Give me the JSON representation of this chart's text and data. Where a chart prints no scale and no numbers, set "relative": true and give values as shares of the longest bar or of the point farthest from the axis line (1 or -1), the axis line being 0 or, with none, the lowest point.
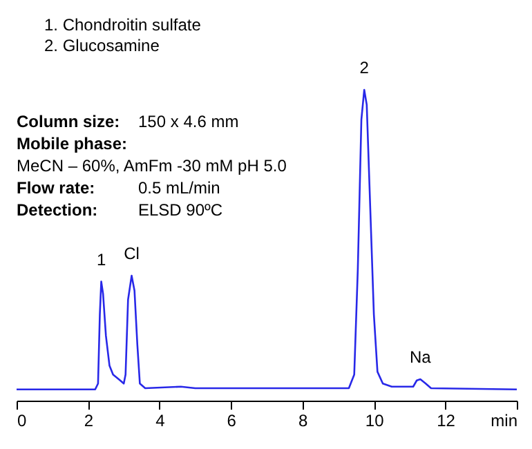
{
  "chart_data": {
    "type": "line",
    "relative": true,
    "xlim": [
      0,
      14
    ],
    "xticks": [
      0,
      2,
      4,
      6,
      8,
      10,
      12,
      {
        "value": 14,
        "label": "min"
      }
    ],
    "grid": false,
    "annotations": [
      "1.   Chondroitin sulfate",
      "2.   Glucosamine",
      "Column size: 150 x 4.6 mm",
      "Mobile phase:",
      "MeCN – 60%, AmFm -30 mM pH 5.0",
      "Flow rate: 0.5 mL/min",
      "Detection: ELSD  90ºC",
      {
        "text": "1",
        "x": 2.37,
        "y": 0.383
      },
      {
        "text": "Cl",
        "x": 3.22,
        "y": 0.402
      },
      {
        "text": "2",
        "x": 9.73,
        "y": 1
      },
      {
        "text": "Na",
        "x": 11.3,
        "y": 0.069
      }
    ],
    "series": [
      {
        "color": "#2828e8",
        "x": [
          0,
          2.2,
          2.28,
          2.33,
          2.37,
          2.42,
          2.5,
          2.6,
          2.7,
          2.9,
          3.0,
          3.05,
          3.12,
          3.22,
          3.3,
          3.38,
          3.45,
          3.6,
          4.6,
          5,
          9.3,
          9.45,
          9.55,
          9.65,
          9.73,
          9.8,
          9.9,
          10.0,
          10.1,
          10.25,
          10.5,
          11.1,
          11.2,
          11.3,
          11.45,
          11.6,
          14
        ],
        "values": [
          0.036,
          0.036,
          0.055,
          0.277,
          0.383,
          0.344,
          0.209,
          0.113,
          0.084,
          0.065,
          0.055,
          0.084,
          0.325,
          0.402,
          0.354,
          0.18,
          0.055,
          0.04,
          0.045,
          0.04,
          0.04,
          0.084,
          0.421,
          0.904,
          1,
          0.952,
          0.614,
          0.277,
          0.093,
          0.055,
          0.045,
          0.045,
          0.065,
          0.069,
          0.055,
          0.04,
          0.036
        ]
      }
    ]
  }
}
